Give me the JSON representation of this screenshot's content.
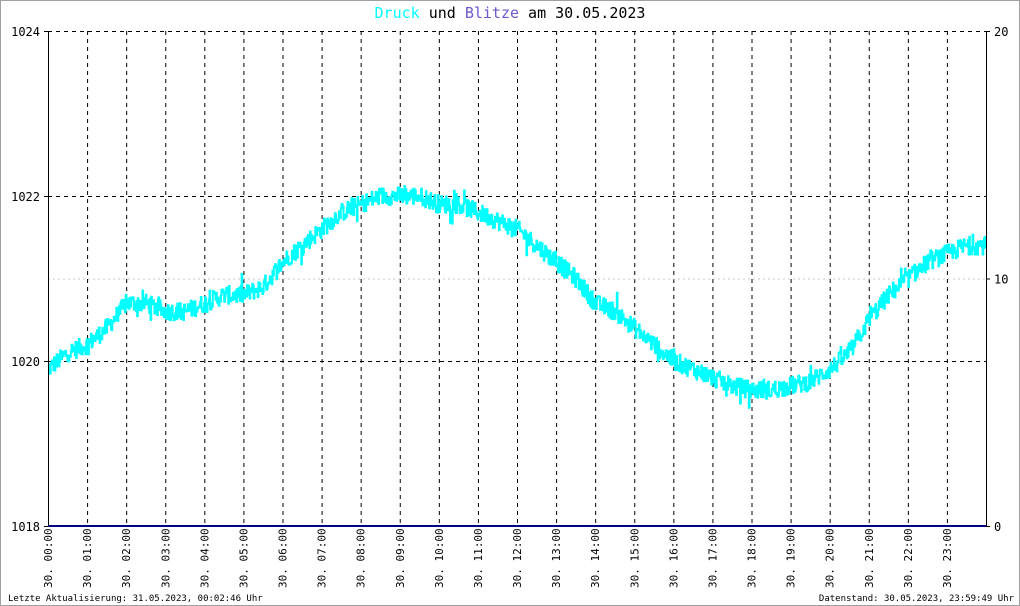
{
  "title": {
    "part1": "Druck",
    "part2": " und ",
    "part3": "Blitze",
    "part4": " am 30.05.2023",
    "color_druck": "#00ffff",
    "color_blitze": "#6a5acd",
    "color_text": "#000000"
  },
  "footer": {
    "left": "Letzte Aktualisierung: 31.05.2023, 00:02:46 Uhr",
    "right": "Datenstand: 30.05.2023, 23:59:49 Uhr"
  },
  "chart_data": {
    "type": "line",
    "y_left": {
      "ylim": [
        1018,
        1024
      ],
      "ticks": [
        "1018",
        "1020",
        "1022",
        "1024"
      ],
      "tick_values": [
        1018,
        1020,
        1022,
        1024
      ]
    },
    "y_right": {
      "ylim": [
        0,
        20
      ],
      "ticks": [
        "0",
        "10",
        "20"
      ],
      "tick_values": [
        0,
        10,
        20
      ]
    },
    "x_range": [
      0,
      24
    ],
    "x_ticks": [
      "30. 00:00",
      "30. 01:00",
      "30. 02:00",
      "30. 03:00",
      "30. 04:00",
      "30. 05:00",
      "30. 06:00",
      "30. 07:00",
      "30. 08:00",
      "30. 09:00",
      "30. 10:00",
      "30. 11:00",
      "30. 12:00",
      "30. 13:00",
      "30. 14:00",
      "30. 15:00",
      "30. 16:00",
      "30. 17:00",
      "30. 18:00",
      "30. 19:00",
      "30. 20:00",
      "30. 21:00",
      "30. 22:00",
      "30. 23:00"
    ],
    "grid": "dashed vertical at each hour; dashed horizontal at 1020, 1022, 1024; dotted at 1021",
    "series": [
      {
        "name": "Druck",
        "axis": "left",
        "color": "#00ffff",
        "x": [
          0,
          0.5,
          1,
          1.5,
          2,
          2.5,
          3,
          3.5,
          4,
          4.5,
          5,
          5.5,
          6,
          6.5,
          7,
          7.5,
          8,
          8.5,
          9,
          9.5,
          10,
          10.5,
          11,
          11.5,
          12,
          12.5,
          13,
          13.5,
          14,
          14.5,
          15,
          15.5,
          16,
          16.5,
          17,
          17.5,
          18,
          18.5,
          19,
          19.5,
          20,
          20.5,
          21,
          21.5,
          22,
          22.5,
          23,
          23.5,
          24
        ],
        "y": [
          1019.9,
          1020.1,
          1020.2,
          1020.4,
          1020.7,
          1020.7,
          1020.6,
          1020.6,
          1020.7,
          1020.8,
          1020.8,
          1020.9,
          1021.2,
          1021.4,
          1021.6,
          1021.8,
          1021.9,
          1022.0,
          1022.0,
          1022.0,
          1021.9,
          1021.9,
          1021.8,
          1021.7,
          1021.6,
          1021.4,
          1021.2,
          1021.0,
          1020.7,
          1020.6,
          1020.4,
          1020.2,
          1020.0,
          1019.9,
          1019.8,
          1019.7,
          1019.65,
          1019.65,
          1019.7,
          1019.75,
          1019.9,
          1020.1,
          1020.5,
          1020.8,
          1021.0,
          1021.2,
          1021.3,
          1021.4,
          1021.4
        ]
      },
      {
        "name": "Blitze",
        "axis": "right",
        "color": "#000080",
        "x": [
          0,
          24
        ],
        "y": [
          0,
          0
        ]
      }
    ]
  }
}
